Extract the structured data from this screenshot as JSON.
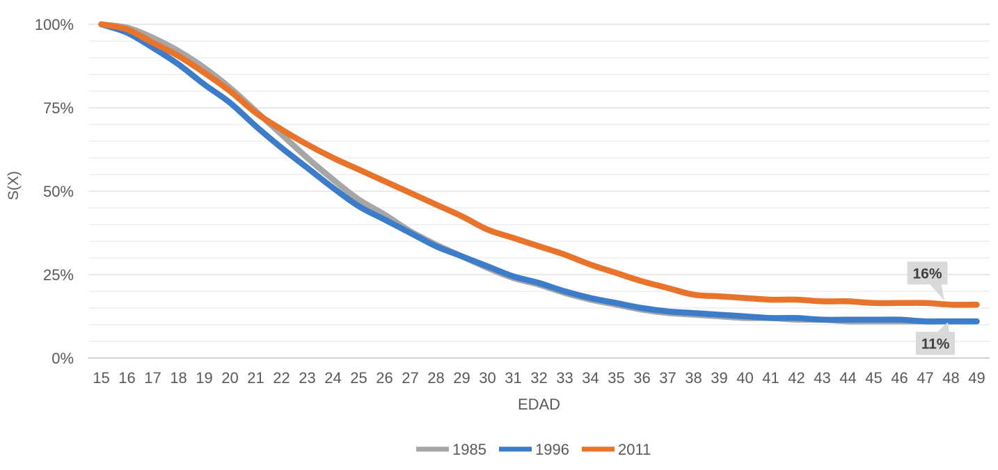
{
  "chart_data": {
    "type": "line",
    "title": "",
    "xlabel": "EDAD",
    "ylabel": "S(X)",
    "x_ticks": [
      15,
      16,
      17,
      18,
      19,
      20,
      21,
      22,
      23,
      24,
      25,
      26,
      27,
      28,
      29,
      30,
      31,
      32,
      33,
      34,
      35,
      36,
      37,
      38,
      39,
      40,
      41,
      42,
      43,
      44,
      45,
      46,
      47,
      48,
      49
    ],
    "y_tick_labels": [
      "0%",
      "25%",
      "50%",
      "75%",
      "100%"
    ],
    "y_tick_values": [
      0,
      25,
      50,
      75,
      100
    ],
    "ylim": [
      0,
      100
    ],
    "y_minor_step": 5,
    "y_major_step": 25,
    "grid": "horizontal",
    "legend_position": "bottom",
    "series": [
      {
        "name": "1985",
        "color": "#A6A6A6",
        "values": [
          100,
          99,
          96,
          92,
          87,
          81,
          74,
          67,
          60,
          53.5,
          47.5,
          43,
          38,
          34,
          30.5,
          27,
          24,
          22,
          19.5,
          17.5,
          16,
          14.5,
          13.5,
          13,
          12.5,
          12,
          12,
          11.5,
          11.5,
          11,
          11,
          11,
          11,
          11,
          11
        ]
      },
      {
        "name": "1996",
        "color": "#3D7CC9",
        "values": [
          100,
          97.5,
          93,
          88,
          82,
          76.5,
          69.5,
          63,
          57,
          51,
          45.5,
          41.5,
          37.5,
          33.5,
          30.5,
          27.5,
          24.5,
          22.5,
          20,
          18,
          16.5,
          15,
          14,
          13.5,
          13,
          12.5,
          12,
          12,
          11.5,
          11.5,
          11.5,
          11.5,
          11,
          11,
          11
        ]
      },
      {
        "name": "2011",
        "color": "#E8732A",
        "values": [
          100,
          98.5,
          94.5,
          90.5,
          85.5,
          80,
          73.5,
          68.5,
          64,
          60,
          56.5,
          53,
          49.5,
          46,
          42.5,
          38.5,
          36,
          33.5,
          31,
          28,
          25.5,
          23,
          21,
          19,
          18.5,
          18,
          17.5,
          17.5,
          17,
          17,
          16.5,
          16.5,
          16.5,
          16,
          16
        ]
      }
    ],
    "annotations": [
      {
        "label": "16%",
        "series": "2011",
        "x": 48,
        "value": 16,
        "placement": "above-line"
      },
      {
        "label": "11%",
        "series": "1996",
        "x": 48,
        "value": 11,
        "placement": "below-line"
      }
    ]
  },
  "style": {
    "background": "#FFFFFF",
    "tick_label_color": "#595959",
    "axis_title_color": "#595959",
    "legend_text_color": "#595959",
    "minor_gridline_color": "#EBEBEB",
    "major_gridline_color": "#D9D9D9",
    "axis_line_color": "#BFBFBF",
    "callout_fill": "#D9D9D9",
    "callout_text_color": "#3F3F3F"
  }
}
